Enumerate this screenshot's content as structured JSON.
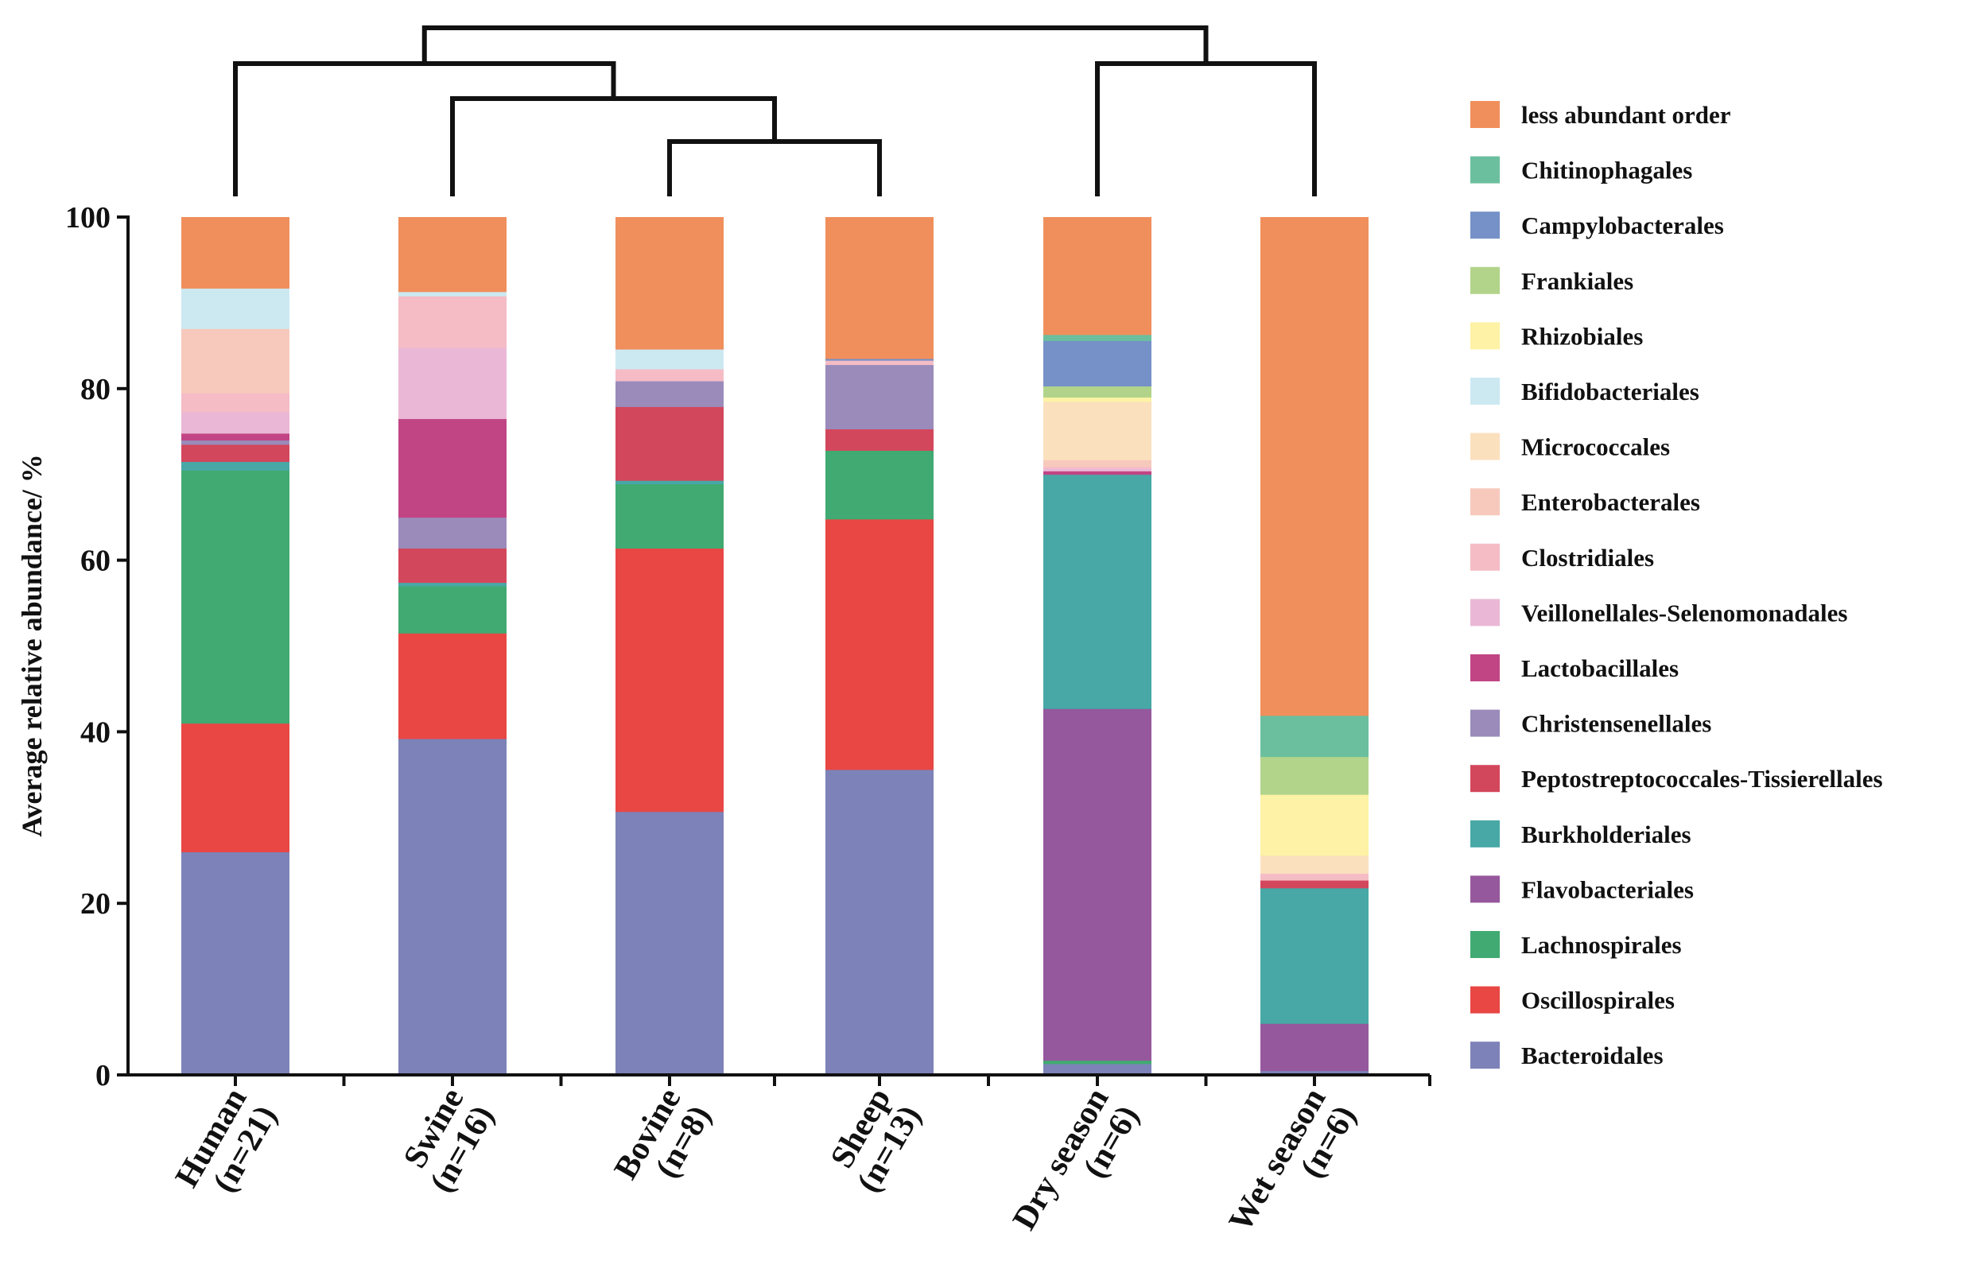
{
  "chart_data": {
    "type": "bar",
    "stacked": true,
    "title": "",
    "xlabel": "",
    "ylabel": "Average relative abundance/ %",
    "ylim": [
      0,
      100
    ],
    "yticks": [
      "0",
      "20",
      "40",
      "60",
      "80",
      "100"
    ],
    "legend_position": "right",
    "categories": [
      {
        "name": "Human",
        "n": "(n=21)"
      },
      {
        "name": "Swine",
        "n": "(n=16)"
      },
      {
        "name": "Bovine",
        "n": "(n=8)"
      },
      {
        "name": "Sheep",
        "n": "(n=13)"
      },
      {
        "name": "Dry season",
        "n": "(n=6)"
      },
      {
        "name": "Wet season",
        "n": "(n=6)"
      }
    ],
    "series": [
      {
        "name": "Bacteroidales",
        "color": "#7D82B8",
        "values": [
          26,
          39.2,
          30.7,
          35.6,
          1.3,
          0.5
        ]
      },
      {
        "name": "Oscillospirales",
        "color": "#E84744",
        "values": [
          15,
          12.3,
          30.7,
          29.2,
          0,
          0
        ]
      },
      {
        "name": "Lachnospirales",
        "color": "#41AA72",
        "values": [
          29.5,
          5.5,
          7.5,
          8,
          0.4,
          0
        ]
      },
      {
        "name": "Flavobacteriales",
        "color": "#96589D",
        "values": [
          0,
          0,
          0,
          0,
          41,
          5.5
        ]
      },
      {
        "name": "Burkholderiales",
        "color": "#47A8A6",
        "values": [
          1,
          0.4,
          0.4,
          0,
          27.3,
          15.8
        ]
      },
      {
        "name": "Peptostreptococcales-Tissierellales",
        "color": "#D3475C",
        "values": [
          2,
          4,
          8.6,
          2.5,
          0,
          0.9
        ]
      },
      {
        "name": "Christensenellales",
        "color": "#9A8BBB",
        "values": [
          0.5,
          3.6,
          3,
          7.5,
          0,
          0
        ]
      },
      {
        "name": "Lactobacillales",
        "color": "#C14585",
        "values": [
          0.8,
          11.5,
          0,
          0,
          0.4,
          0
        ]
      },
      {
        "name": "Veillonellales-Selenomonadales",
        "color": "#EAB8D6",
        "values": [
          2.5,
          8.3,
          0,
          0,
          0.3,
          0
        ]
      },
      {
        "name": "Clostridiales",
        "color": "#F5BCC6",
        "values": [
          2.2,
          6,
          1.4,
          0.5,
          0.2,
          0.8
        ]
      },
      {
        "name": "Enterobacterales",
        "color": "#F7C9BC",
        "values": [
          7.5,
          0,
          0,
          0,
          0.8,
          0
        ]
      },
      {
        "name": "Micrococcales",
        "color": "#FBE0BE",
        "values": [
          0,
          0,
          0,
          0,
          6.8,
          2.1
        ]
      },
      {
        "name": "Bifidobacteriales",
        "color": "#CCE9F2",
        "values": [
          4.7,
          0.5,
          2.3,
          0,
          0,
          0
        ]
      },
      {
        "name": "Rhizobiales",
        "color": "#FDF2A5",
        "values": [
          0,
          0,
          0,
          0,
          0.5,
          7.1
        ]
      },
      {
        "name": "Frankiales",
        "color": "#B2D48A",
        "values": [
          0,
          0,
          0,
          0,
          1.3,
          4.4
        ]
      },
      {
        "name": "Campylobacterales",
        "color": "#7591C8",
        "values": [
          0,
          0,
          0,
          0.2,
          5.3,
          0
        ]
      },
      {
        "name": "Chitinophagales",
        "color": "#6BBF9E",
        "values": [
          0,
          0,
          0,
          0,
          0.7,
          4.8
        ]
      },
      {
        "name": "less abundant order",
        "color": "#F08F5C",
        "values": [
          8.3,
          8.7,
          15.4,
          16.5,
          13.7,
          58.1
        ]
      }
    ],
    "dendrogram": [
      [
        0,
        [
          1,
          [
            2,
            3
          ]
        ]
      ],
      [
        4,
        5
      ]
    ]
  }
}
